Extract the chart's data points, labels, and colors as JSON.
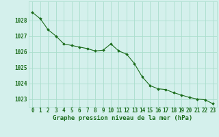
{
  "x": [
    0,
    1,
    2,
    3,
    4,
    5,
    6,
    7,
    8,
    9,
    10,
    11,
    12,
    13,
    14,
    15,
    16,
    17,
    18,
    19,
    20,
    21,
    22,
    23
  ],
  "y": [
    1028.5,
    1028.1,
    1027.4,
    1027.0,
    1026.5,
    1026.4,
    1026.3,
    1026.2,
    1026.05,
    1026.1,
    1026.5,
    1026.05,
    1025.85,
    1025.25,
    1024.4,
    1023.85,
    1023.65,
    1023.6,
    1023.4,
    1023.25,
    1023.1,
    1023.0,
    1022.95,
    1022.7
  ],
  "line_color": "#1a6b1a",
  "marker": "D",
  "marker_size": 2.0,
  "bg_color": "#d4f0ec",
  "grid_color": "#aaddcc",
  "xlabel": "Graphe pression niveau de la mer (hPa)",
  "ylim": [
    1022.5,
    1029.2
  ],
  "xlim": [
    -0.5,
    23.5
  ],
  "yticks": [
    1023,
    1024,
    1025,
    1026,
    1027,
    1028
  ],
  "xtick_labels": [
    "0",
    "1",
    "2",
    "3",
    "4",
    "5",
    "6",
    "7",
    "8",
    "9",
    "10",
    "11",
    "12",
    "13",
    "14",
    "15",
    "16",
    "17",
    "18",
    "19",
    "20",
    "21",
    "22",
    "23"
  ],
  "tick_color": "#1a6b1a",
  "label_color": "#1a6b1a",
  "label_fontsize": 6.5,
  "tick_fontsize": 5.5
}
